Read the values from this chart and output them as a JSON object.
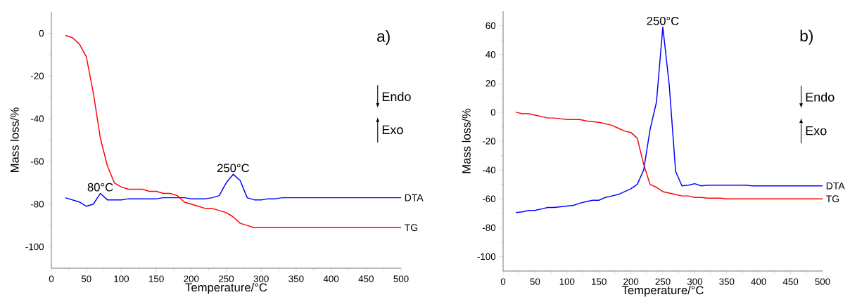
{
  "chart_data": [
    {
      "type": "line",
      "xlabel": "Temperature/°C",
      "ylabel": "Mass loss/%",
      "xlim": [
        0,
        500
      ],
      "ylim": [
        -110,
        10
      ],
      "xticks": [
        0,
        50,
        100,
        150,
        200,
        250,
        300,
        350,
        400,
        450,
        500
      ],
      "yticks": [
        -100,
        -80,
        -60,
        -40,
        -20,
        0
      ],
      "legend": false,
      "grid": false,
      "series": [
        {
          "name": "DTA",
          "color": "#0000ff",
          "x": [
            20,
            30,
            40,
            50,
            60,
            70,
            80,
            90,
            100,
            110,
            150,
            160,
            190,
            200,
            220,
            230,
            240,
            250,
            260,
            270,
            280,
            290,
            300,
            310,
            320,
            330,
            500
          ],
          "values": [
            -77,
            -78,
            -79,
            -81,
            -80,
            -75,
            -78,
            -78,
            -78,
            -77.5,
            -77.5,
            -77,
            -77,
            -77.5,
            -77.5,
            -77,
            -76,
            -70,
            -66,
            -69,
            -77,
            -78,
            -78,
            -77.5,
            -77.5,
            -77,
            -77
          ]
        },
        {
          "name": "TG",
          "color": "#ff0000",
          "x": [
            20,
            30,
            40,
            50,
            60,
            70,
            80,
            90,
            100,
            110,
            120,
            130,
            140,
            150,
            160,
            170,
            180,
            190,
            200,
            210,
            220,
            230,
            240,
            250,
            260,
            270,
            280,
            290,
            500
          ],
          "values": [
            -1,
            -2,
            -5,
            -11,
            -28,
            -49,
            -62,
            -70,
            -72,
            -73,
            -73,
            -73,
            -74,
            -74,
            -75,
            -75,
            -76,
            -79,
            -80,
            -81,
            -82,
            -82,
            -83,
            -84,
            -86,
            -89,
            -90,
            -91,
            -91
          ]
        }
      ],
      "annotations": [
        "a)",
        "Endo",
        "Exo",
        {
          "text": "80°C",
          "x": 70,
          "y": -75
        },
        {
          "text": "250°C",
          "x": 260,
          "y": -66
        }
      ]
    },
    {
      "type": "line",
      "xlabel": "Temperature/°C",
      "ylabel": "Mass loss/%",
      "xlim": [
        0,
        500
      ],
      "ylim": [
        -110,
        70
      ],
      "xticks": [
        0,
        50,
        100,
        150,
        200,
        250,
        300,
        350,
        400,
        450,
        500
      ],
      "yticks": [
        -100,
        -80,
        -60,
        -40,
        -20,
        0,
        20,
        40,
        60
      ],
      "legend": false,
      "grid": false,
      "series": [
        {
          "name": "DTA",
          "color": "#0000ff",
          "x": [
            20,
            30,
            40,
            50,
            60,
            70,
            80,
            90,
            100,
            110,
            120,
            130,
            140,
            150,
            160,
            170,
            180,
            190,
            200,
            210,
            220,
            230,
            240,
            250,
            260,
            270,
            280,
            290,
            300,
            310,
            320,
            380,
            390,
            500
          ],
          "values": [
            -69.5,
            -69,
            -68,
            -68,
            -67,
            -66,
            -66,
            -65.5,
            -65,
            -64.5,
            -63,
            -62,
            -61,
            -61,
            -59,
            -58,
            -57,
            -55,
            -53,
            -50,
            -40,
            -12,
            7,
            59,
            19,
            -41,
            -51,
            -50.5,
            -49.5,
            -51,
            -50.5,
            -50.5,
            -51,
            -51
          ]
        },
        {
          "name": "TG",
          "color": "#ff0000",
          "x": [
            20,
            30,
            40,
            50,
            60,
            70,
            80,
            90,
            100,
            110,
            120,
            130,
            140,
            150,
            160,
            170,
            180,
            190,
            200,
            210,
            220,
            230,
            240,
            250,
            260,
            270,
            280,
            290,
            300,
            310,
            320,
            340,
            350,
            500
          ],
          "values": [
            0,
            -1,
            -1,
            -2,
            -3,
            -4,
            -4,
            -4.5,
            -5,
            -5,
            -5,
            -6,
            -6.5,
            -7,
            -8,
            -9,
            -11,
            -13,
            -14,
            -18,
            -36,
            -50,
            -52,
            -55,
            -56,
            -57,
            -58,
            -58,
            -59,
            -59,
            -59.5,
            -59.5,
            -60,
            -60
          ]
        }
      ],
      "annotations": [
        "b)",
        "Endo",
        "Exo",
        {
          "text": "250°C",
          "x": 250,
          "y": 59
        }
      ]
    }
  ]
}
